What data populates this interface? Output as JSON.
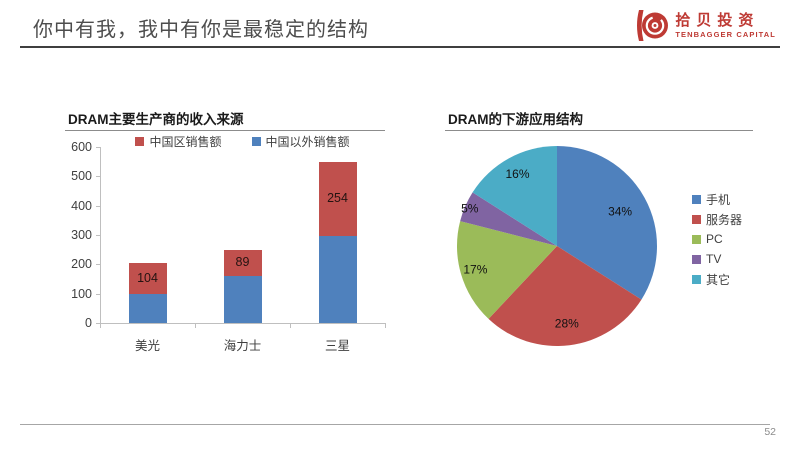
{
  "slide": {
    "title": "你中有我，我中有你是最稳定的结构",
    "page_number": "52"
  },
  "logo": {
    "name_cn": "拾贝投资",
    "name_en": "TENBAGGER CAPITAL",
    "color": "#be3a34"
  },
  "colors": {
    "series_blue": "#4F81BD",
    "series_red": "#C0504D",
    "series_green": "#9BBB59",
    "series_purple": "#8064A2",
    "series_teal": "#4BACC6",
    "axis_line": "#bfbfbf",
    "header_rule": "#3f3f3f",
    "footer_rule": "#a6a6a6"
  },
  "chart_data": [
    {
      "type": "bar",
      "stacked": true,
      "title": "DRAM主要生产商的收入来源",
      "categories": [
        "美光",
        "海力士",
        "三星"
      ],
      "series": [
        {
          "name": "中国以外销售额",
          "color": "#4F81BD",
          "values": [
            99,
            160,
            296
          ]
        },
        {
          "name": "中国区销售额",
          "color": "#C0504D",
          "values": [
            104,
            89,
            254
          ],
          "data_labels": [
            "104",
            "89",
            "254"
          ]
        }
      ],
      "legend_order": [
        1,
        0
      ],
      "legend_position": "top",
      "xlabel": "",
      "ylabel": "",
      "ylim": [
        0,
        600
      ],
      "yticks": [
        0,
        100,
        200,
        300,
        400,
        500,
        600
      ],
      "grid": false
    },
    {
      "type": "pie",
      "title": "DRAM的下游应用结构",
      "labels": [
        "手机",
        "服务器",
        "PC",
        "TV",
        "其它"
      ],
      "values": [
        34,
        28,
        17,
        5,
        16
      ],
      "data_labels": [
        "34%",
        "28%",
        "17%",
        "5%",
        "16%"
      ],
      "colors": [
        "#4F81BD",
        "#C0504D",
        "#9BBB59",
        "#8064A2",
        "#4BACC6"
      ],
      "start_angle_deg": -90,
      "direction": "clockwise",
      "legend_position": "right",
      "label_radius_frac": [
        0.72,
        0.78,
        0.85,
        0.95,
        0.82
      ]
    }
  ]
}
